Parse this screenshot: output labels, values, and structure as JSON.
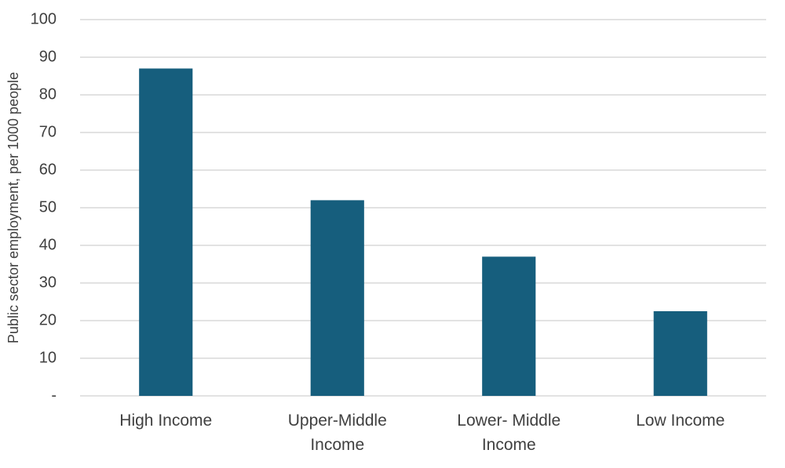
{
  "chart_data": {
    "type": "bar",
    "y_label": "Public sector employment, per 1000 people",
    "categories": [
      "High Income",
      "Upper-Middle Income",
      "Lower- Middle Income",
      "Low Income"
    ],
    "values": [
      87,
      52,
      37,
      22.5
    ],
    "color": "#165e7d",
    "ylim": [
      0,
      100
    ],
    "yticks": [
      {
        "value": 0,
        "label": "-"
      },
      10,
      20,
      30,
      40,
      50,
      60,
      70,
      80,
      90,
      100
    ],
    "grid": true
  }
}
